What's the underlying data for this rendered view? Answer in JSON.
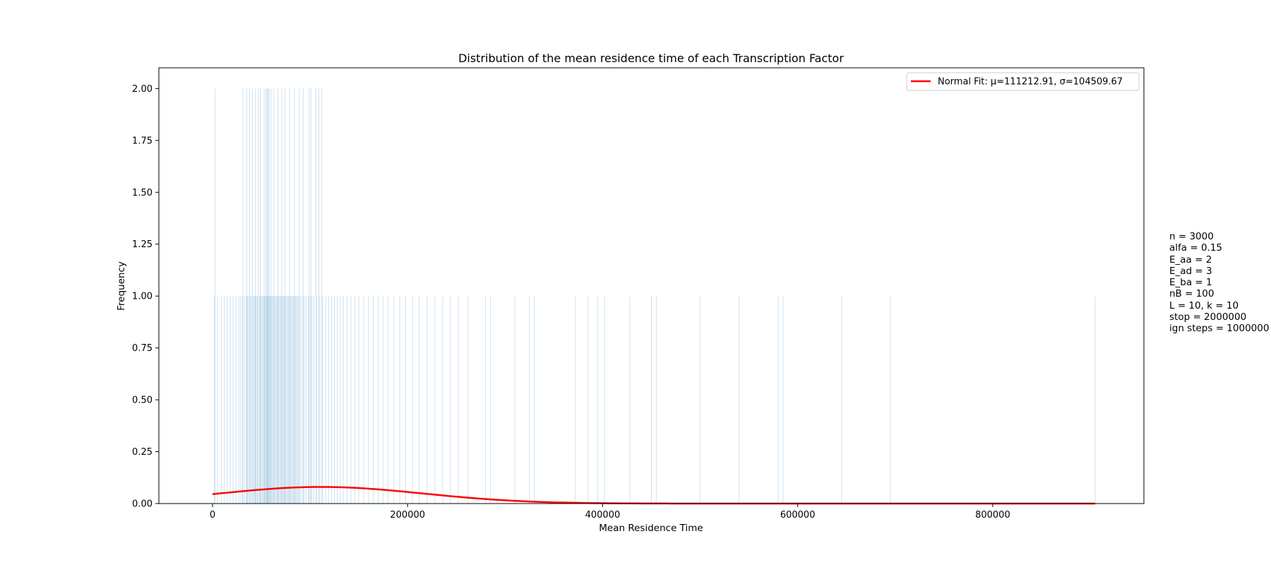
{
  "chart_data": {
    "type": "bar",
    "title": "Distribution of the mean residence time of each Transcription Factor",
    "xlabel": "Mean Residence Time",
    "ylabel": "Frequency",
    "xlim": [
      -55000,
      955000
    ],
    "ylim": [
      0,
      2.1
    ],
    "x_ticks": [
      0,
      200000,
      400000,
      600000,
      800000
    ],
    "x_tick_labels": [
      "0",
      "200000",
      "400000",
      "600000",
      "800000"
    ],
    "y_ticks": [
      0,
      0.25,
      0.5,
      0.75,
      1.0,
      1.25,
      1.5,
      1.75,
      2.0
    ],
    "y_tick_labels": [
      "0.00",
      "0.25",
      "0.50",
      "0.75",
      "1.00",
      "1.25",
      "1.50",
      "1.75",
      "2.00"
    ],
    "grid": false,
    "histogram": {
      "style": "fine-bin histogram, one thin light-blue bar per bin",
      "color": "#1f77b4",
      "bars_height_2": [
        2500,
        31000,
        35000,
        38000,
        41000,
        44000,
        47000,
        49000,
        53000,
        55000,
        56000,
        57000,
        58000,
        60000,
        63000,
        67000,
        71000,
        74000,
        79000,
        84000,
        89000,
        93000,
        99000,
        101000,
        106000,
        109000,
        112000
      ],
      "bars_height_1": [
        2000,
        5000,
        9000,
        12000,
        15000,
        18000,
        21000,
        24000,
        27000,
        29000,
        31000,
        33000,
        35000,
        36000,
        37000,
        39000,
        40000,
        42000,
        43000,
        44000,
        45000,
        46000,
        48000,
        49000,
        50000,
        51000,
        52000,
        53000,
        54000,
        55000,
        56000,
        57000,
        58000,
        59000,
        60000,
        61000,
        62000,
        63000,
        64000,
        65000,
        66000,
        67000,
        68000,
        69000,
        70000,
        71000,
        72000,
        73000,
        74000,
        75000,
        76000,
        77000,
        78000,
        79000,
        80000,
        81000,
        82000,
        83000,
        84000,
        85000,
        86000,
        87000,
        88000,
        90000,
        92000,
        94000,
        96000,
        98000,
        100000,
        102000,
        104000,
        107000,
        110000,
        113000,
        116000,
        119000,
        122000,
        125000,
        128000,
        131000,
        134000,
        138000,
        142000,
        146000,
        150000,
        155000,
        160000,
        165000,
        170000,
        175000,
        180000,
        186000,
        192000,
        198000,
        205000,
        212000,
        220000,
        228000,
        236000,
        244000,
        252000,
        262000,
        280000,
        285000,
        310000,
        325000,
        330000,
        372000,
        385000,
        395000,
        402000,
        428000,
        450000,
        455000,
        500000,
        540000,
        580000,
        585000,
        645000,
        695000,
        905000
      ]
    },
    "series": [
      {
        "name": "Normal Fit: μ=111212.91, σ=104509.67",
        "type": "line",
        "color": "#ff0000",
        "x_range": [
          0,
          905000
        ],
        "mu": 111212.91,
        "sigma": 104509.67,
        "scale": 0.08
      }
    ],
    "legend": {
      "position": "top-right"
    },
    "side_text": [
      "n = 3000",
      "alfa = 0.15",
      "E_aa = 2",
      "E_ad = 3",
      "E_ba = 1",
      "nB = 100",
      "L = 10, k = 10",
      "stop = 2000000",
      "ign steps = 1000000"
    ]
  }
}
